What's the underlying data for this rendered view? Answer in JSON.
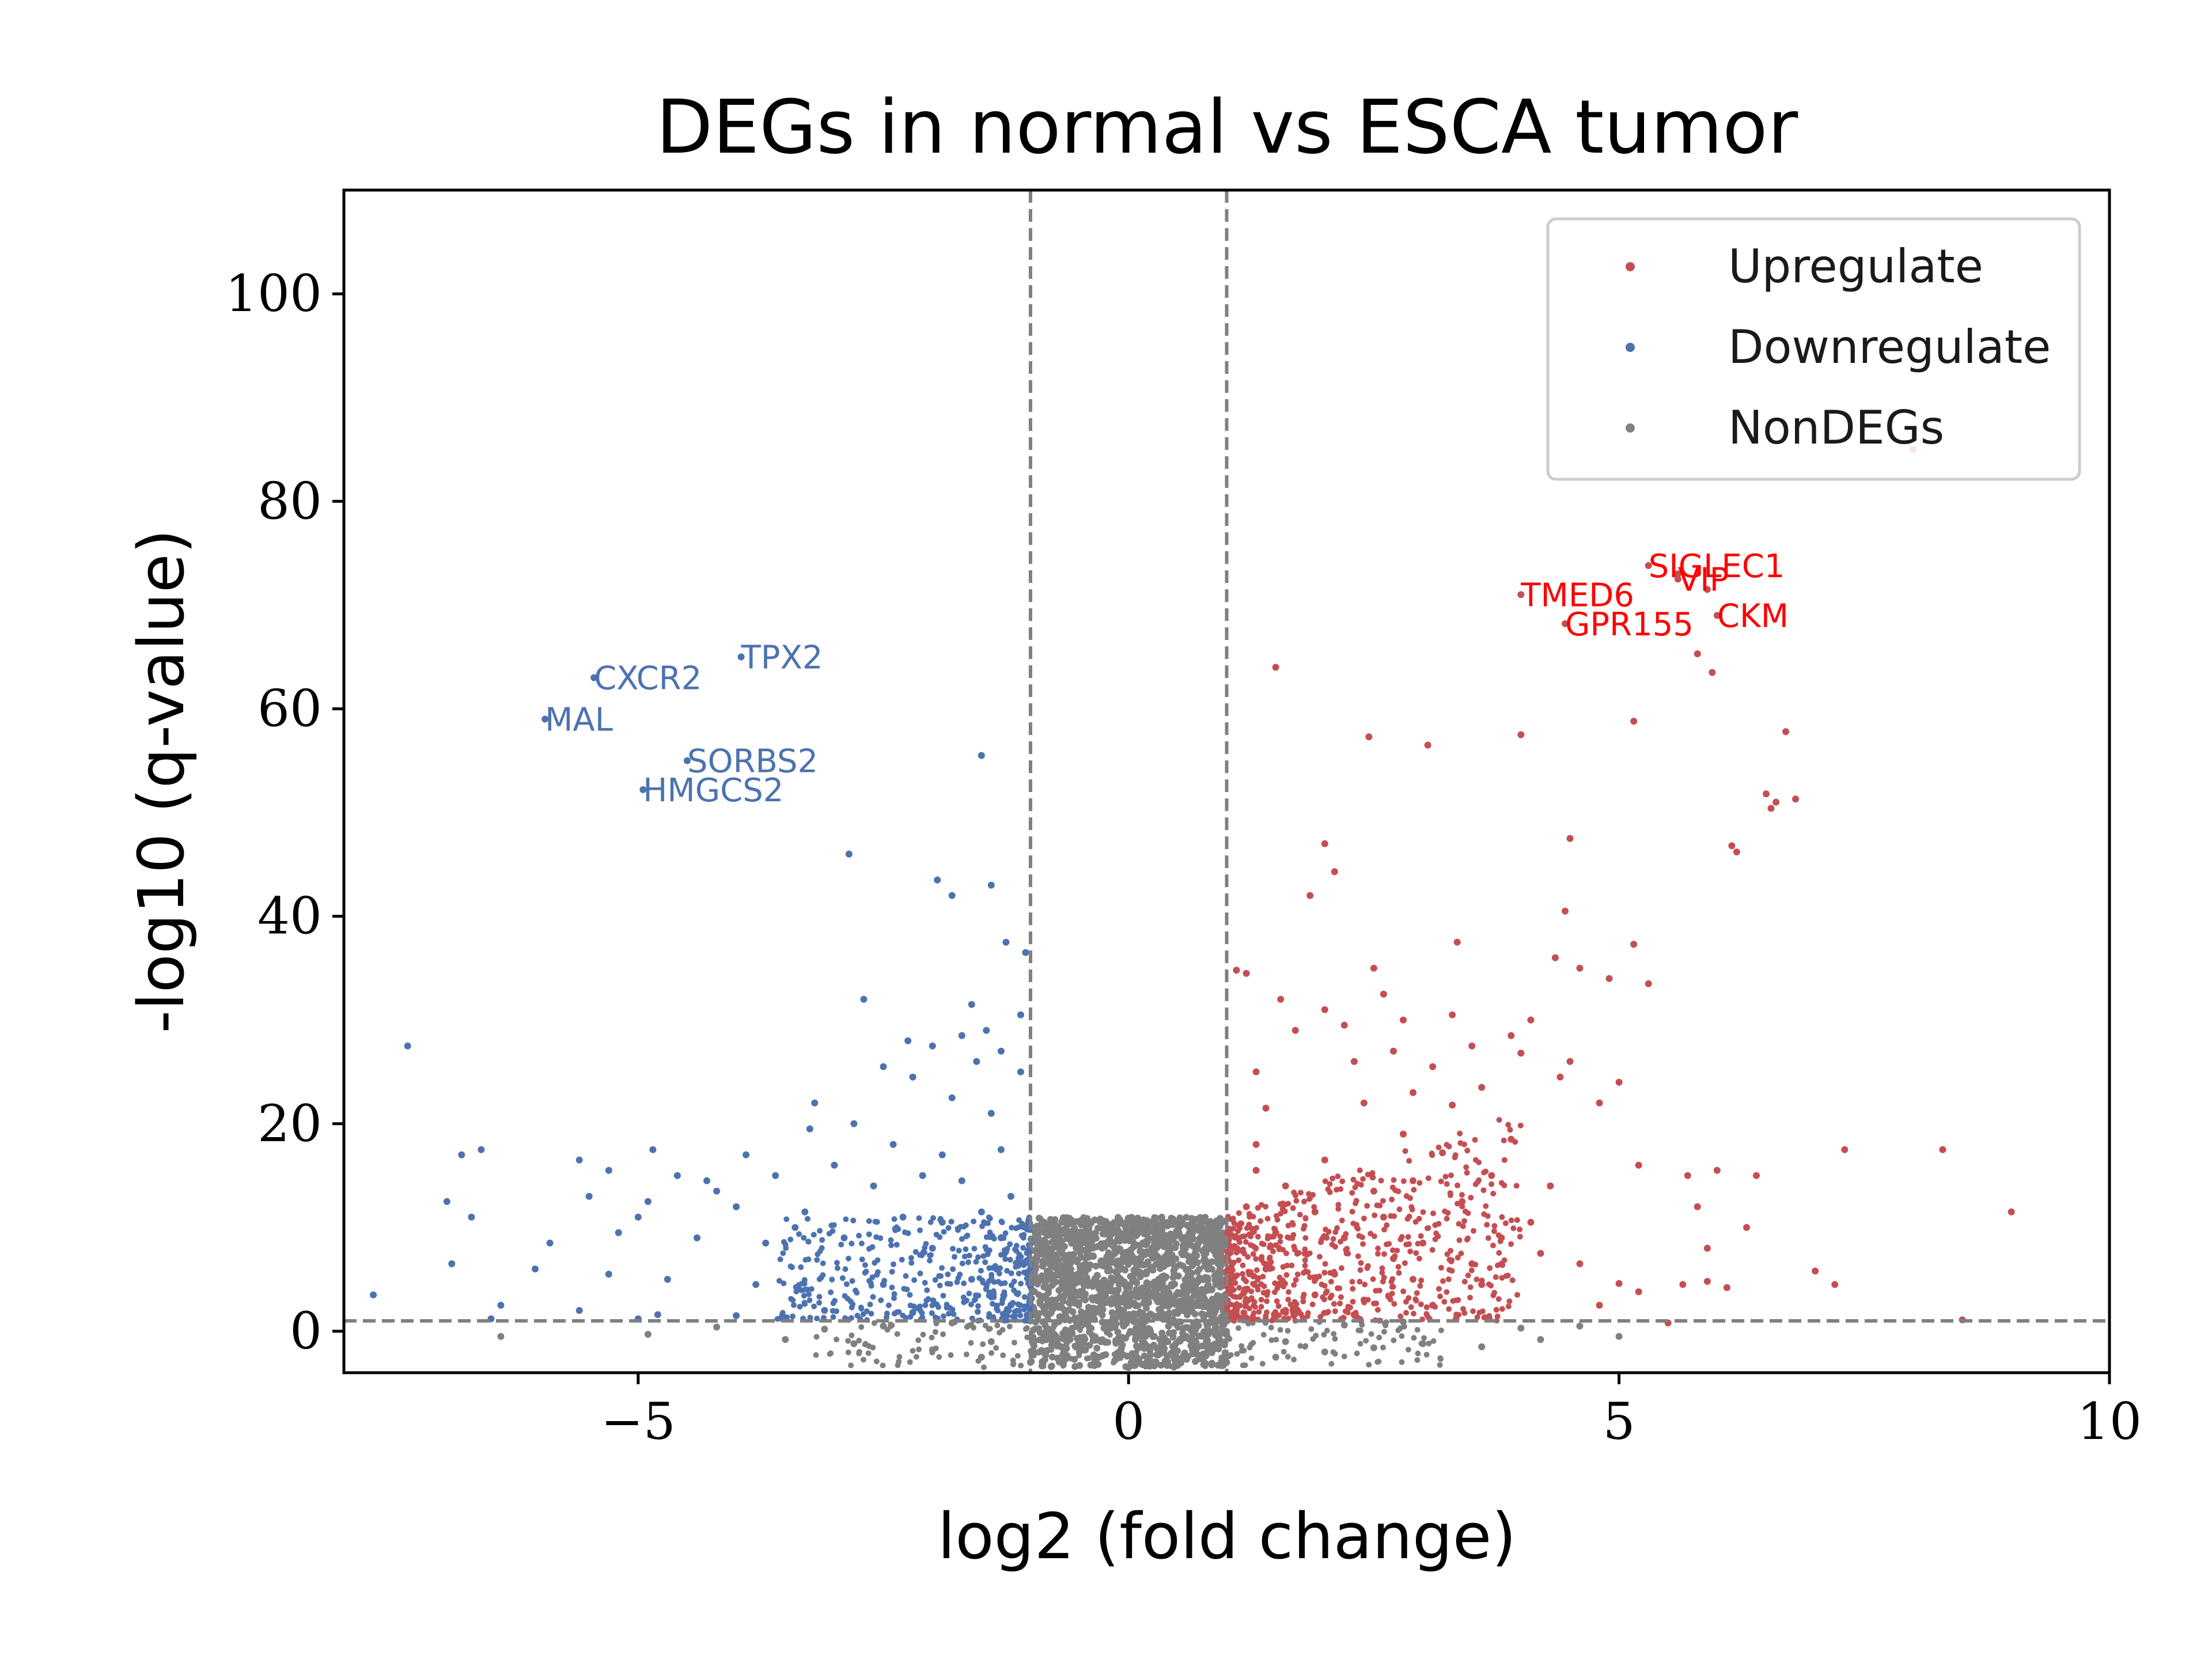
{
  "chart_data": {
    "type": "scatter",
    "title": "DEGs in normal vs ESCA tumor",
    "xlabel": "log2 (fold change)",
    "ylabel": "-log10 (q-value)",
    "xlim": [
      -8,
      10
    ],
    "ylim": [
      -4,
      110
    ],
    "xticks": [
      -5,
      0,
      5,
      10
    ],
    "xtick_labels": [
      "−5",
      "0",
      "5",
      "10"
    ],
    "yticks": [
      0,
      20,
      40,
      60,
      80,
      100
    ],
    "ytick_labels": [
      "0",
      "20",
      "40",
      "60",
      "80",
      "100"
    ],
    "grid": false,
    "legend_position": "top-right",
    "thresholds": {
      "log2fc": [
        -1,
        1
      ],
      "neg_log10_q": 1
    },
    "colors": {
      "up": "#c44e52",
      "down": "#4c72b0",
      "non": "#808080",
      "up_label": "#ff0000",
      "threshold": "#808080"
    },
    "series": [
      {
        "name": "Upregulate",
        "points": [
          [
            8.0,
            85.0
          ],
          [
            5.6,
            72.5
          ],
          [
            5.3,
            73.8
          ],
          [
            5.6,
            73.0
          ],
          [
            4.0,
            71.0
          ],
          [
            5.9,
            71.5
          ],
          [
            6.0,
            69.0
          ],
          [
            4.45,
            68.2
          ],
          [
            5.8,
            65.3
          ],
          [
            5.95,
            63.5
          ],
          [
            1.5,
            64.0
          ],
          [
            5.15,
            58.8
          ],
          [
            6.7,
            57.8
          ],
          [
            4.0,
            57.5
          ],
          [
            2.45,
            57.3
          ],
          [
            3.05,
            56.5
          ],
          [
            6.5,
            51.8
          ],
          [
            6.6,
            51.0
          ],
          [
            6.8,
            51.3
          ],
          [
            6.55,
            50.4
          ],
          [
            2.0,
            47.0
          ],
          [
            4.5,
            47.5
          ],
          [
            6.15,
            46.8
          ],
          [
            6.2,
            46.2
          ],
          [
            2.1,
            44.3
          ],
          [
            1.85,
            42.0
          ],
          [
            4.45,
            40.5
          ],
          [
            3.35,
            37.5
          ],
          [
            5.15,
            37.3
          ],
          [
            4.35,
            36.0
          ],
          [
            2.5,
            35.0
          ],
          [
            1.1,
            34.8
          ],
          [
            1.2,
            34.5
          ],
          [
            4.6,
            35.0
          ],
          [
            4.9,
            34.0
          ],
          [
            5.3,
            33.5
          ],
          [
            1.55,
            32.0
          ],
          [
            2.6,
            32.5
          ],
          [
            2.0,
            31.0
          ],
          [
            2.8,
            30.0
          ],
          [
            3.3,
            30.5
          ],
          [
            4.1,
            30.0
          ],
          [
            1.7,
            29.0
          ],
          [
            2.2,
            29.5
          ],
          [
            3.9,
            28.5
          ],
          [
            2.7,
            27.0
          ],
          [
            3.5,
            27.5
          ],
          [
            4.0,
            26.8
          ],
          [
            4.5,
            26.0
          ],
          [
            1.3,
            25.0
          ],
          [
            2.3,
            26.0
          ],
          [
            3.1,
            25.5
          ],
          [
            5.0,
            24.0
          ],
          [
            4.4,
            24.5
          ],
          [
            2.9,
            23.0
          ],
          [
            3.6,
            23.5
          ],
          [
            4.8,
            22.0
          ],
          [
            1.4,
            21.5
          ],
          [
            2.4,
            22.0
          ],
          [
            3.3,
            21.8
          ],
          [
            7.3,
            17.5
          ],
          [
            8.3,
            17.5
          ],
          [
            9.0,
            11.5
          ],
          [
            5.7,
            15.0
          ],
          [
            6.0,
            15.5
          ],
          [
            6.4,
            15.0
          ],
          [
            5.2,
            16.0
          ],
          [
            5.8,
            12.0
          ],
          [
            6.3,
            10.0
          ],
          [
            5.9,
            8.0
          ],
          [
            7.0,
            5.8
          ],
          [
            7.2,
            4.5
          ],
          [
            5.65,
            4.5
          ],
          [
            5.9,
            4.8
          ],
          [
            6.1,
            4.2
          ],
          [
            4.6,
            6.5
          ],
          [
            5.0,
            4.6
          ],
          [
            5.2,
            3.8
          ],
          [
            4.8,
            2.5
          ],
          [
            8.5,
            1.1
          ],
          [
            5.5,
            0.8
          ],
          [
            1.3,
            18.0
          ],
          [
            2.0,
            16.5
          ],
          [
            2.8,
            19.0
          ],
          [
            3.2,
            17.2
          ],
          [
            1.6,
            14.0
          ],
          [
            2.5,
            13.5
          ],
          [
            3.7,
            15.0
          ],
          [
            4.3,
            14.0
          ],
          [
            1.2,
            12.0
          ],
          [
            1.9,
            11.5
          ],
          [
            2.6,
            11.0
          ],
          [
            3.4,
            12.5
          ],
          [
            4.1,
            10.5
          ],
          [
            1.5,
            9.5
          ],
          [
            2.2,
            9.0
          ],
          [
            3.0,
            8.5
          ],
          [
            3.8,
            9.0
          ],
          [
            1.1,
            8.0
          ],
          [
            1.8,
            7.5
          ],
          [
            2.7,
            7.0
          ],
          [
            3.5,
            6.5
          ],
          [
            4.2,
            7.5
          ],
          [
            1.4,
            6.0
          ],
          [
            2.1,
            5.5
          ],
          [
            2.9,
            5.0
          ],
          [
            3.6,
            4.5
          ],
          [
            1.2,
            4.0
          ],
          [
            1.9,
            3.5
          ],
          [
            2.4,
            3.0
          ],
          [
            3.1,
            2.5
          ],
          [
            1.6,
            2.0
          ],
          [
            2.3,
            1.6
          ],
          [
            1.1,
            1.5
          ],
          [
            1.3,
            15.5
          ],
          [
            2.9,
            14.5
          ],
          [
            3.9,
            18.5
          ]
        ]
      },
      {
        "name": "Downregulate",
        "points": [
          [
            -3.95,
            65.0
          ],
          [
            -5.45,
            63.0
          ],
          [
            -5.95,
            59.0
          ],
          [
            -4.5,
            55.0
          ],
          [
            -4.95,
            52.2
          ],
          [
            -1.5,
            55.5
          ],
          [
            -2.85,
            46.0
          ],
          [
            -1.95,
            43.5
          ],
          [
            -1.8,
            42.0
          ],
          [
            -1.4,
            43.0
          ],
          [
            -1.25,
            37.5
          ],
          [
            -1.05,
            36.5
          ],
          [
            -1.6,
            31.5
          ],
          [
            -2.7,
            32.0
          ],
          [
            -1.1,
            30.5
          ],
          [
            -1.45,
            29.0
          ],
          [
            -1.7,
            28.5
          ],
          [
            -2.25,
            28.0
          ],
          [
            -2.0,
            27.5
          ],
          [
            -1.3,
            27.0
          ],
          [
            -1.55,
            26.0
          ],
          [
            -2.5,
            25.5
          ],
          [
            -1.1,
            25.0
          ],
          [
            -2.2,
            24.5
          ],
          [
            -3.2,
            22.0
          ],
          [
            -1.8,
            22.5
          ],
          [
            -1.4,
            21.0
          ],
          [
            -3.25,
            19.5
          ],
          [
            -2.8,
            20.0
          ],
          [
            -7.35,
            27.5
          ],
          [
            -6.6,
            17.5
          ],
          [
            -6.8,
            17.0
          ],
          [
            -5.6,
            16.5
          ],
          [
            -4.85,
            17.5
          ],
          [
            -3.9,
            17.0
          ],
          [
            -2.4,
            18.0
          ],
          [
            -1.9,
            17.0
          ],
          [
            -1.3,
            17.5
          ],
          [
            -5.3,
            15.5
          ],
          [
            -4.6,
            15.0
          ],
          [
            -4.3,
            14.5
          ],
          [
            -3.6,
            15.0
          ],
          [
            -2.6,
            14.0
          ],
          [
            -1.7,
            14.5
          ],
          [
            -5.5,
            13.0
          ],
          [
            -4.9,
            12.5
          ],
          [
            -4.0,
            12.0
          ],
          [
            -3.3,
            11.5
          ],
          [
            -2.3,
            11.0
          ],
          [
            -1.5,
            11.5
          ],
          [
            -6.95,
            12.5
          ],
          [
            -6.7,
            11.0
          ],
          [
            -5.9,
            8.5
          ],
          [
            -5.2,
            9.5
          ],
          [
            -4.4,
            9.0
          ],
          [
            -3.7,
            8.5
          ],
          [
            -2.9,
            9.0
          ],
          [
            -2.0,
            8.0
          ],
          [
            -1.3,
            9.0
          ],
          [
            -6.9,
            6.5
          ],
          [
            -6.05,
            6.0
          ],
          [
            -5.3,
            5.5
          ],
          [
            -4.7,
            5.0
          ],
          [
            -3.8,
            4.5
          ],
          [
            -2.5,
            4.5
          ],
          [
            -1.6,
            5.0
          ],
          [
            -7.7,
            3.5
          ],
          [
            -6.4,
            2.5
          ],
          [
            -5.6,
            2.0
          ],
          [
            -4.8,
            1.6
          ],
          [
            -4.0,
            1.5
          ],
          [
            -3.1,
            2.0
          ],
          [
            -2.2,
            1.8
          ],
          [
            -1.2,
            2.5
          ],
          [
            -6.5,
            1.2
          ],
          [
            -5.0,
            1.2
          ],
          [
            -3.5,
            1.3
          ],
          [
            -4.2,
            13.5
          ],
          [
            -3.0,
            16.0
          ],
          [
            -2.1,
            15.0
          ],
          [
            -1.2,
            13.0
          ],
          [
            -5.0,
            11.0
          ],
          [
            -3.4,
            10.0
          ],
          [
            -1.9,
            10.5
          ]
        ]
      },
      {
        "name": "NonDEGs",
        "points": [
          [
            -6.4,
            -0.5
          ],
          [
            -4.9,
            -0.3
          ],
          [
            -3.5,
            -0.8
          ],
          [
            -2.8,
            -1.2
          ],
          [
            -2.0,
            -1.8
          ],
          [
            -1.5,
            -2.5
          ],
          [
            -1.0,
            -3.0
          ],
          [
            -0.5,
            -3.3
          ],
          [
            0.0,
            -3.5
          ],
          [
            0.5,
            -3.3
          ],
          [
            1.0,
            -3.0
          ],
          [
            1.5,
            -2.5
          ],
          [
            2.0,
            -2.0
          ],
          [
            2.5,
            -1.6
          ],
          [
            3.0,
            -1.2
          ],
          [
            3.6,
            -1.5
          ],
          [
            4.2,
            -0.8
          ],
          [
            5.0,
            -0.5
          ],
          [
            -2.5,
            0.5
          ],
          [
            -1.8,
            0.8
          ],
          [
            2.2,
            0.6
          ],
          [
            2.8,
            0.9
          ],
          [
            1.6,
            -1.0
          ],
          [
            -1.4,
            -1.0
          ],
          [
            4.0,
            0.3
          ],
          [
            4.6,
            0.5
          ],
          [
            -4.2,
            0.4
          ],
          [
            -3.1,
            0.2
          ]
        ],
        "dense_region": {
          "x": [
            -1,
            1
          ],
          "y": [
            -3.5,
            11
          ]
        }
      }
    ],
    "annotations": [
      {
        "text": "VIP",
        "x": 5.6,
        "y": 72.5,
        "series": "Upregulate"
      },
      {
        "text": "SIGLEC1",
        "x": 5.3,
        "y": 73.8,
        "series": "Upregulate"
      },
      {
        "text": "TMED6",
        "x": 4.0,
        "y": 71.0,
        "series": "Upregulate"
      },
      {
        "text": "GPR155",
        "x": 4.45,
        "y": 68.2,
        "series": "Upregulate"
      },
      {
        "text": "CKM",
        "x": 6.0,
        "y": 69.0,
        "series": "Upregulate"
      },
      {
        "text": "TPX2",
        "x": -3.95,
        "y": 65.0,
        "series": "Downregulate"
      },
      {
        "text": "CXCR2",
        "x": -5.45,
        "y": 63.0,
        "series": "Downregulate"
      },
      {
        "text": "MAL",
        "x": -5.95,
        "y": 59.0,
        "series": "Downregulate"
      },
      {
        "text": "SORBS2",
        "x": -4.5,
        "y": 55.0,
        "series": "Downregulate"
      },
      {
        "text": "HMGCS2",
        "x": -4.95,
        "y": 52.2,
        "series": "Downregulate"
      }
    ]
  }
}
